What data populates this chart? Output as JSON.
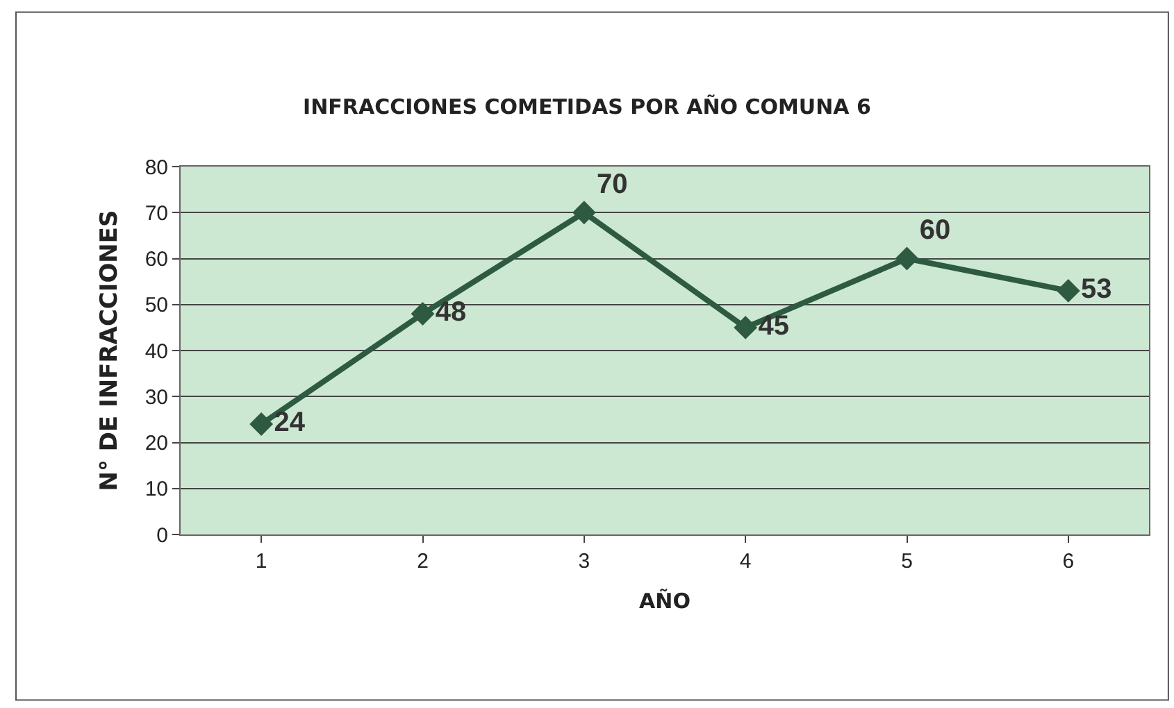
{
  "chart_data": {
    "type": "line",
    "title": "INFRACCIONES COMETIDAS POR AÑO COMUNA 6",
    "xlabel": "AÑO",
    "ylabel": "N° DE INFRACCIONES",
    "categories": [
      "1",
      "2",
      "3",
      "4",
      "5",
      "6"
    ],
    "series": [
      {
        "color": "#2d5a40",
        "values": [
          24,
          48,
          70,
          45,
          60,
          53
        ]
      }
    ],
    "ylim": [
      0,
      80
    ],
    "yticks": [
      0,
      10,
      20,
      30,
      40,
      50,
      60,
      70,
      80
    ],
    "grid": "y",
    "marker": "diamond",
    "line_style": "solid",
    "data_labels": true,
    "legend": false
  }
}
